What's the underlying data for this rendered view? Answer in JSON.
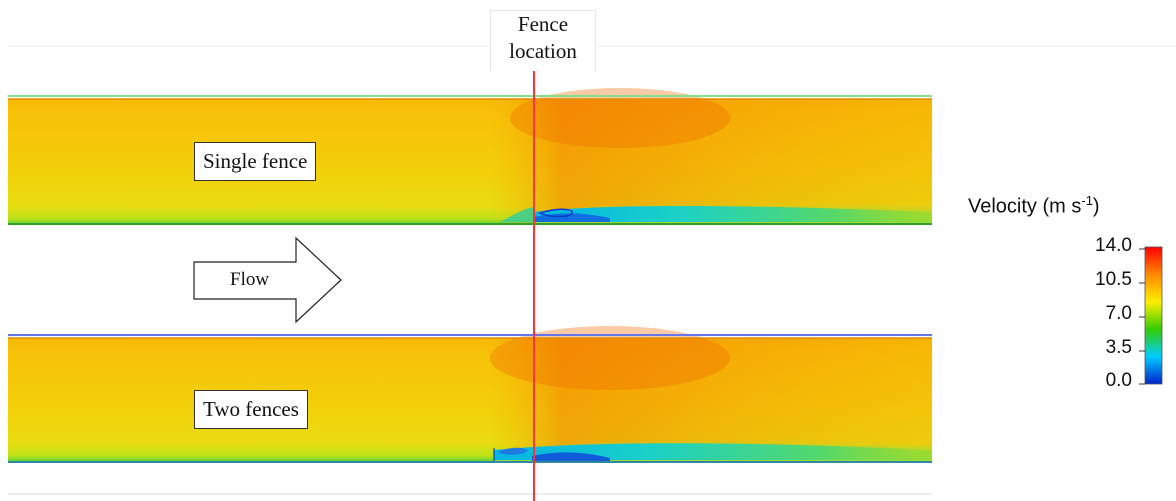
{
  "fence_label_line1": "Fence",
  "fence_label_line2": "location",
  "panels": [
    {
      "label": "Single fence"
    },
    {
      "label": "Two fences"
    }
  ],
  "flow_label": "Flow",
  "legend": {
    "title": "Velocity (m s",
    "title_exp": "-1",
    "title_close": ")",
    "ticks": [
      "14.0",
      "10.5",
      "7.0",
      "3.5",
      "0.0"
    ],
    "colormap": [
      "#ff0000",
      "#ff9900",
      "#ffee00",
      "#33cc00",
      "#00ccff",
      "#0022cc"
    ]
  },
  "colors": {
    "fence_line": "#ff3333",
    "upper_border": "#88dd88",
    "lower_border": "#6677ee"
  }
}
